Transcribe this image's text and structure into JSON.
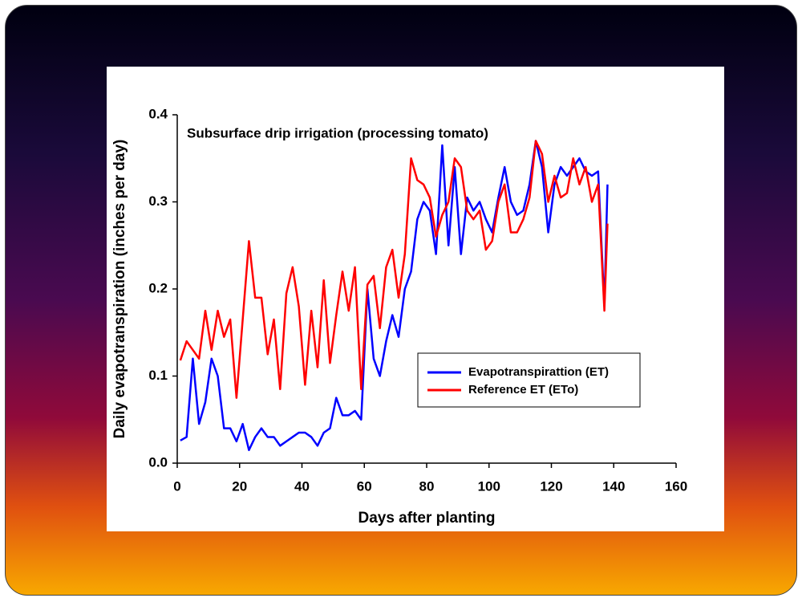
{
  "chart_data": {
    "type": "line",
    "title": "Subsurface drip irrigation (processing tomato)",
    "x_label": "Days after planting",
    "y_label": "Daily evapotranspiration (inches per day)",
    "x": [
      1,
      3,
      5,
      7,
      9,
      11,
      13,
      15,
      17,
      19,
      21,
      23,
      25,
      27,
      29,
      31,
      33,
      35,
      37,
      39,
      41,
      43,
      45,
      47,
      49,
      51,
      53,
      55,
      57,
      59,
      61,
      63,
      65,
      67,
      69,
      71,
      73,
      75,
      77,
      79,
      81,
      83,
      85,
      87,
      89,
      91,
      93,
      95,
      97,
      99,
      101,
      103,
      105,
      107,
      109,
      111,
      113,
      115,
      117,
      119,
      121,
      123,
      125,
      127,
      129,
      131,
      133,
      135,
      137,
      138
    ],
    "series": [
      {
        "name": "Evapotranspirattion (ET)",
        "color": "#0000ff",
        "values": [
          0.026,
          0.03,
          0.12,
          0.045,
          0.07,
          0.12,
          0.1,
          0.04,
          0.04,
          0.025,
          0.045,
          0.015,
          0.03,
          0.04,
          0.03,
          0.03,
          0.02,
          0.025,
          0.03,
          0.035,
          0.035,
          0.03,
          0.02,
          0.035,
          0.04,
          0.075,
          0.055,
          0.055,
          0.06,
          0.05,
          0.2,
          0.12,
          0.1,
          0.14,
          0.17,
          0.145,
          0.2,
          0.22,
          0.28,
          0.3,
          0.29,
          0.24,
          0.365,
          0.25,
          0.34,
          0.24,
          0.305,
          0.29,
          0.3,
          0.28,
          0.265,
          0.305,
          0.34,
          0.3,
          0.285,
          0.29,
          0.32,
          0.37,
          0.34,
          0.265,
          0.32,
          0.34,
          0.33,
          0.34,
          0.35,
          0.335,
          0.33,
          0.335,
          0.18,
          0.32
        ]
      },
      {
        "name": "Reference ET (ETo)",
        "color": "#ff0000",
        "values": [
          0.118,
          0.14,
          0.13,
          0.12,
          0.175,
          0.13,
          0.175,
          0.145,
          0.165,
          0.075,
          0.165,
          0.255,
          0.19,
          0.19,
          0.125,
          0.165,
          0.085,
          0.195,
          0.225,
          0.18,
          0.09,
          0.175,
          0.11,
          0.21,
          0.115,
          0.17,
          0.22,
          0.175,
          0.225,
          0.085,
          0.205,
          0.215,
          0.155,
          0.225,
          0.245,
          0.19,
          0.24,
          0.35,
          0.325,
          0.32,
          0.305,
          0.26,
          0.285,
          0.3,
          0.35,
          0.34,
          0.29,
          0.28,
          0.29,
          0.245,
          0.255,
          0.3,
          0.32,
          0.265,
          0.265,
          0.28,
          0.305,
          0.37,
          0.355,
          0.3,
          0.33,
          0.305,
          0.31,
          0.35,
          0.32,
          0.34,
          0.3,
          0.32,
          0.175,
          0.275
        ]
      }
    ],
    "xlim": [
      0,
      160
    ],
    "xticks": [
      0,
      20,
      40,
      60,
      80,
      100,
      120,
      140,
      160
    ],
    "ylim": [
      0,
      0.4
    ],
    "yticks": [
      {
        "value": 0,
        "label": "0.0"
      },
      0.1,
      0.2,
      0.3,
      0.4
    ]
  }
}
